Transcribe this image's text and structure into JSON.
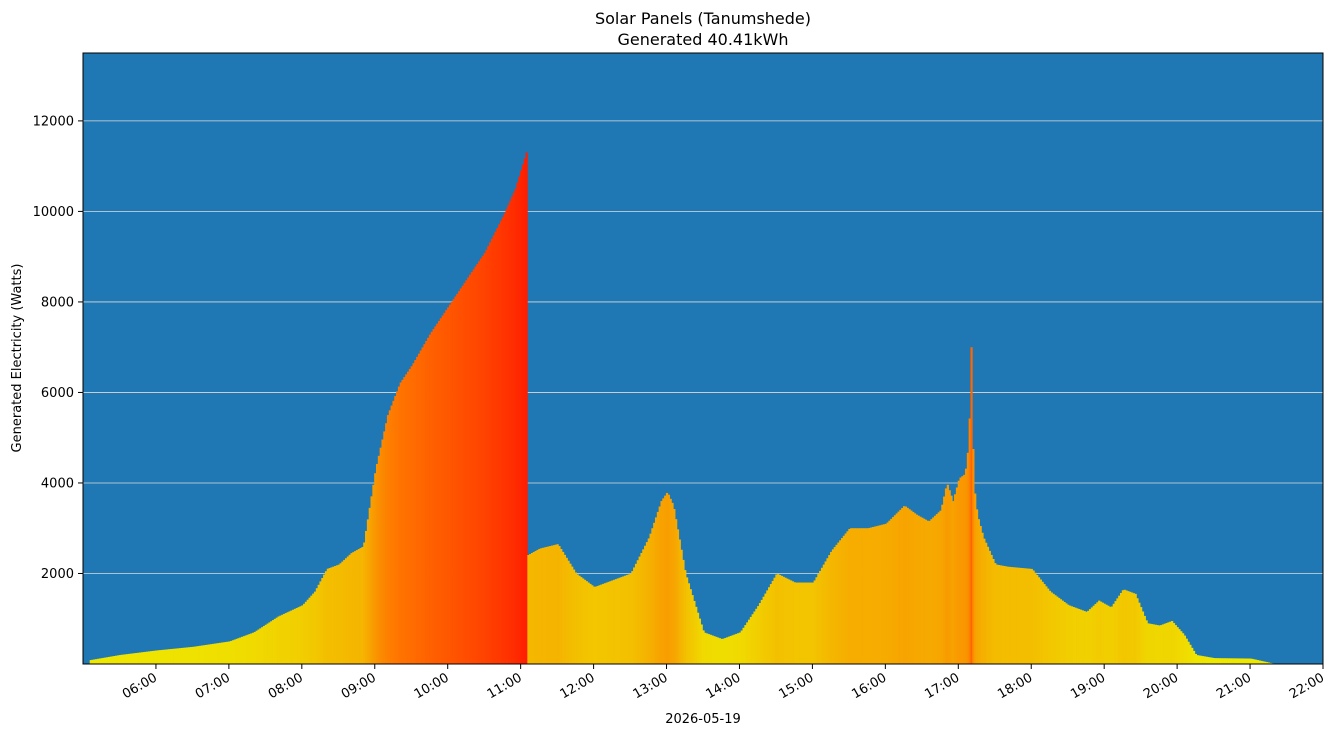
{
  "chart_data": {
    "type": "bar",
    "title": "Solar Panels (Tanumshede)",
    "subtitle": "Generated 40.41kWh",
    "xlabel": "2026-05-19",
    "ylabel": "Generated Electricity (Watts)",
    "ylim": [
      0,
      13500
    ],
    "y_ticks": [
      2000,
      4000,
      6000,
      8000,
      10000,
      12000
    ],
    "y_tick_labels": [
      "2000",
      "4000",
      "6000",
      "8000",
      "10000",
      "12000"
    ],
    "x_range": [
      "05:00",
      "22:00"
    ],
    "x_ticks": [
      "06:00",
      "07:00",
      "08:00",
      "09:00",
      "10:00",
      "11:00",
      "12:00",
      "13:00",
      "14:00",
      "15:00",
      "16:00",
      "17:00",
      "18:00",
      "19:00",
      "20:00",
      "21:00",
      "22:00"
    ],
    "grid": "horizontal",
    "colors": {
      "background": "#1f77b4",
      "grid": "#dddddd",
      "low": "#eeee00",
      "high": "#ff2000"
    },
    "profile_x": [
      "05:04",
      "05:30",
      "06:00",
      "06:30",
      "07:00",
      "07:20",
      "07:40",
      "08:00",
      "08:10",
      "08:20",
      "08:30",
      "08:40",
      "08:50",
      "09:00",
      "09:10",
      "09:20",
      "09:30",
      "09:45",
      "10:00",
      "10:15",
      "10:30",
      "10:45",
      "10:55",
      "11:04",
      "11:05",
      "11:15",
      "11:30",
      "11:45",
      "12:00",
      "12:15",
      "12:30",
      "12:45",
      "12:55",
      "13:00",
      "13:05",
      "13:15",
      "13:30",
      "13:45",
      "14:00",
      "14:15",
      "14:30",
      "14:45",
      "15:00",
      "15:15",
      "15:30",
      "15:45",
      "16:00",
      "16:15",
      "16:25",
      "16:35",
      "16:45",
      "16:50",
      "16:55",
      "17:00",
      "17:05",
      "17:08",
      "17:10",
      "17:12",
      "17:15",
      "17:20",
      "17:30",
      "17:40",
      "18:00",
      "18:15",
      "18:30",
      "18:45",
      "18:55",
      "19:05",
      "19:15",
      "19:25",
      "19:35",
      "19:45",
      "19:55",
      "20:05",
      "20:15",
      "20:30",
      "21:00",
      "21:20"
    ],
    "profile_y": [
      80,
      200,
      300,
      380,
      500,
      700,
      1050,
      1300,
      1600,
      2100,
      2200,
      2450,
      2600,
      4300,
      5500,
      6200,
      6600,
      7300,
      7900,
      8500,
      9100,
      9900,
      10500,
      11300,
      2400,
      2550,
      2650,
      2000,
      1700,
      1850,
      2000,
      2800,
      3600,
      3800,
      3500,
      2000,
      700,
      550,
      700,
      1300,
      2000,
      1800,
      1800,
      2500,
      3000,
      3000,
      3100,
      3500,
      3300,
      3150,
      3400,
      4000,
      3600,
      4100,
      4200,
      4900,
      7000,
      4000,
      3300,
      2800,
      2200,
      2150,
      2100,
      1600,
      1300,
      1150,
      1400,
      1250,
      1650,
      1550,
      900,
      850,
      950,
      650,
      200,
      130,
      120,
      0
    ]
  }
}
